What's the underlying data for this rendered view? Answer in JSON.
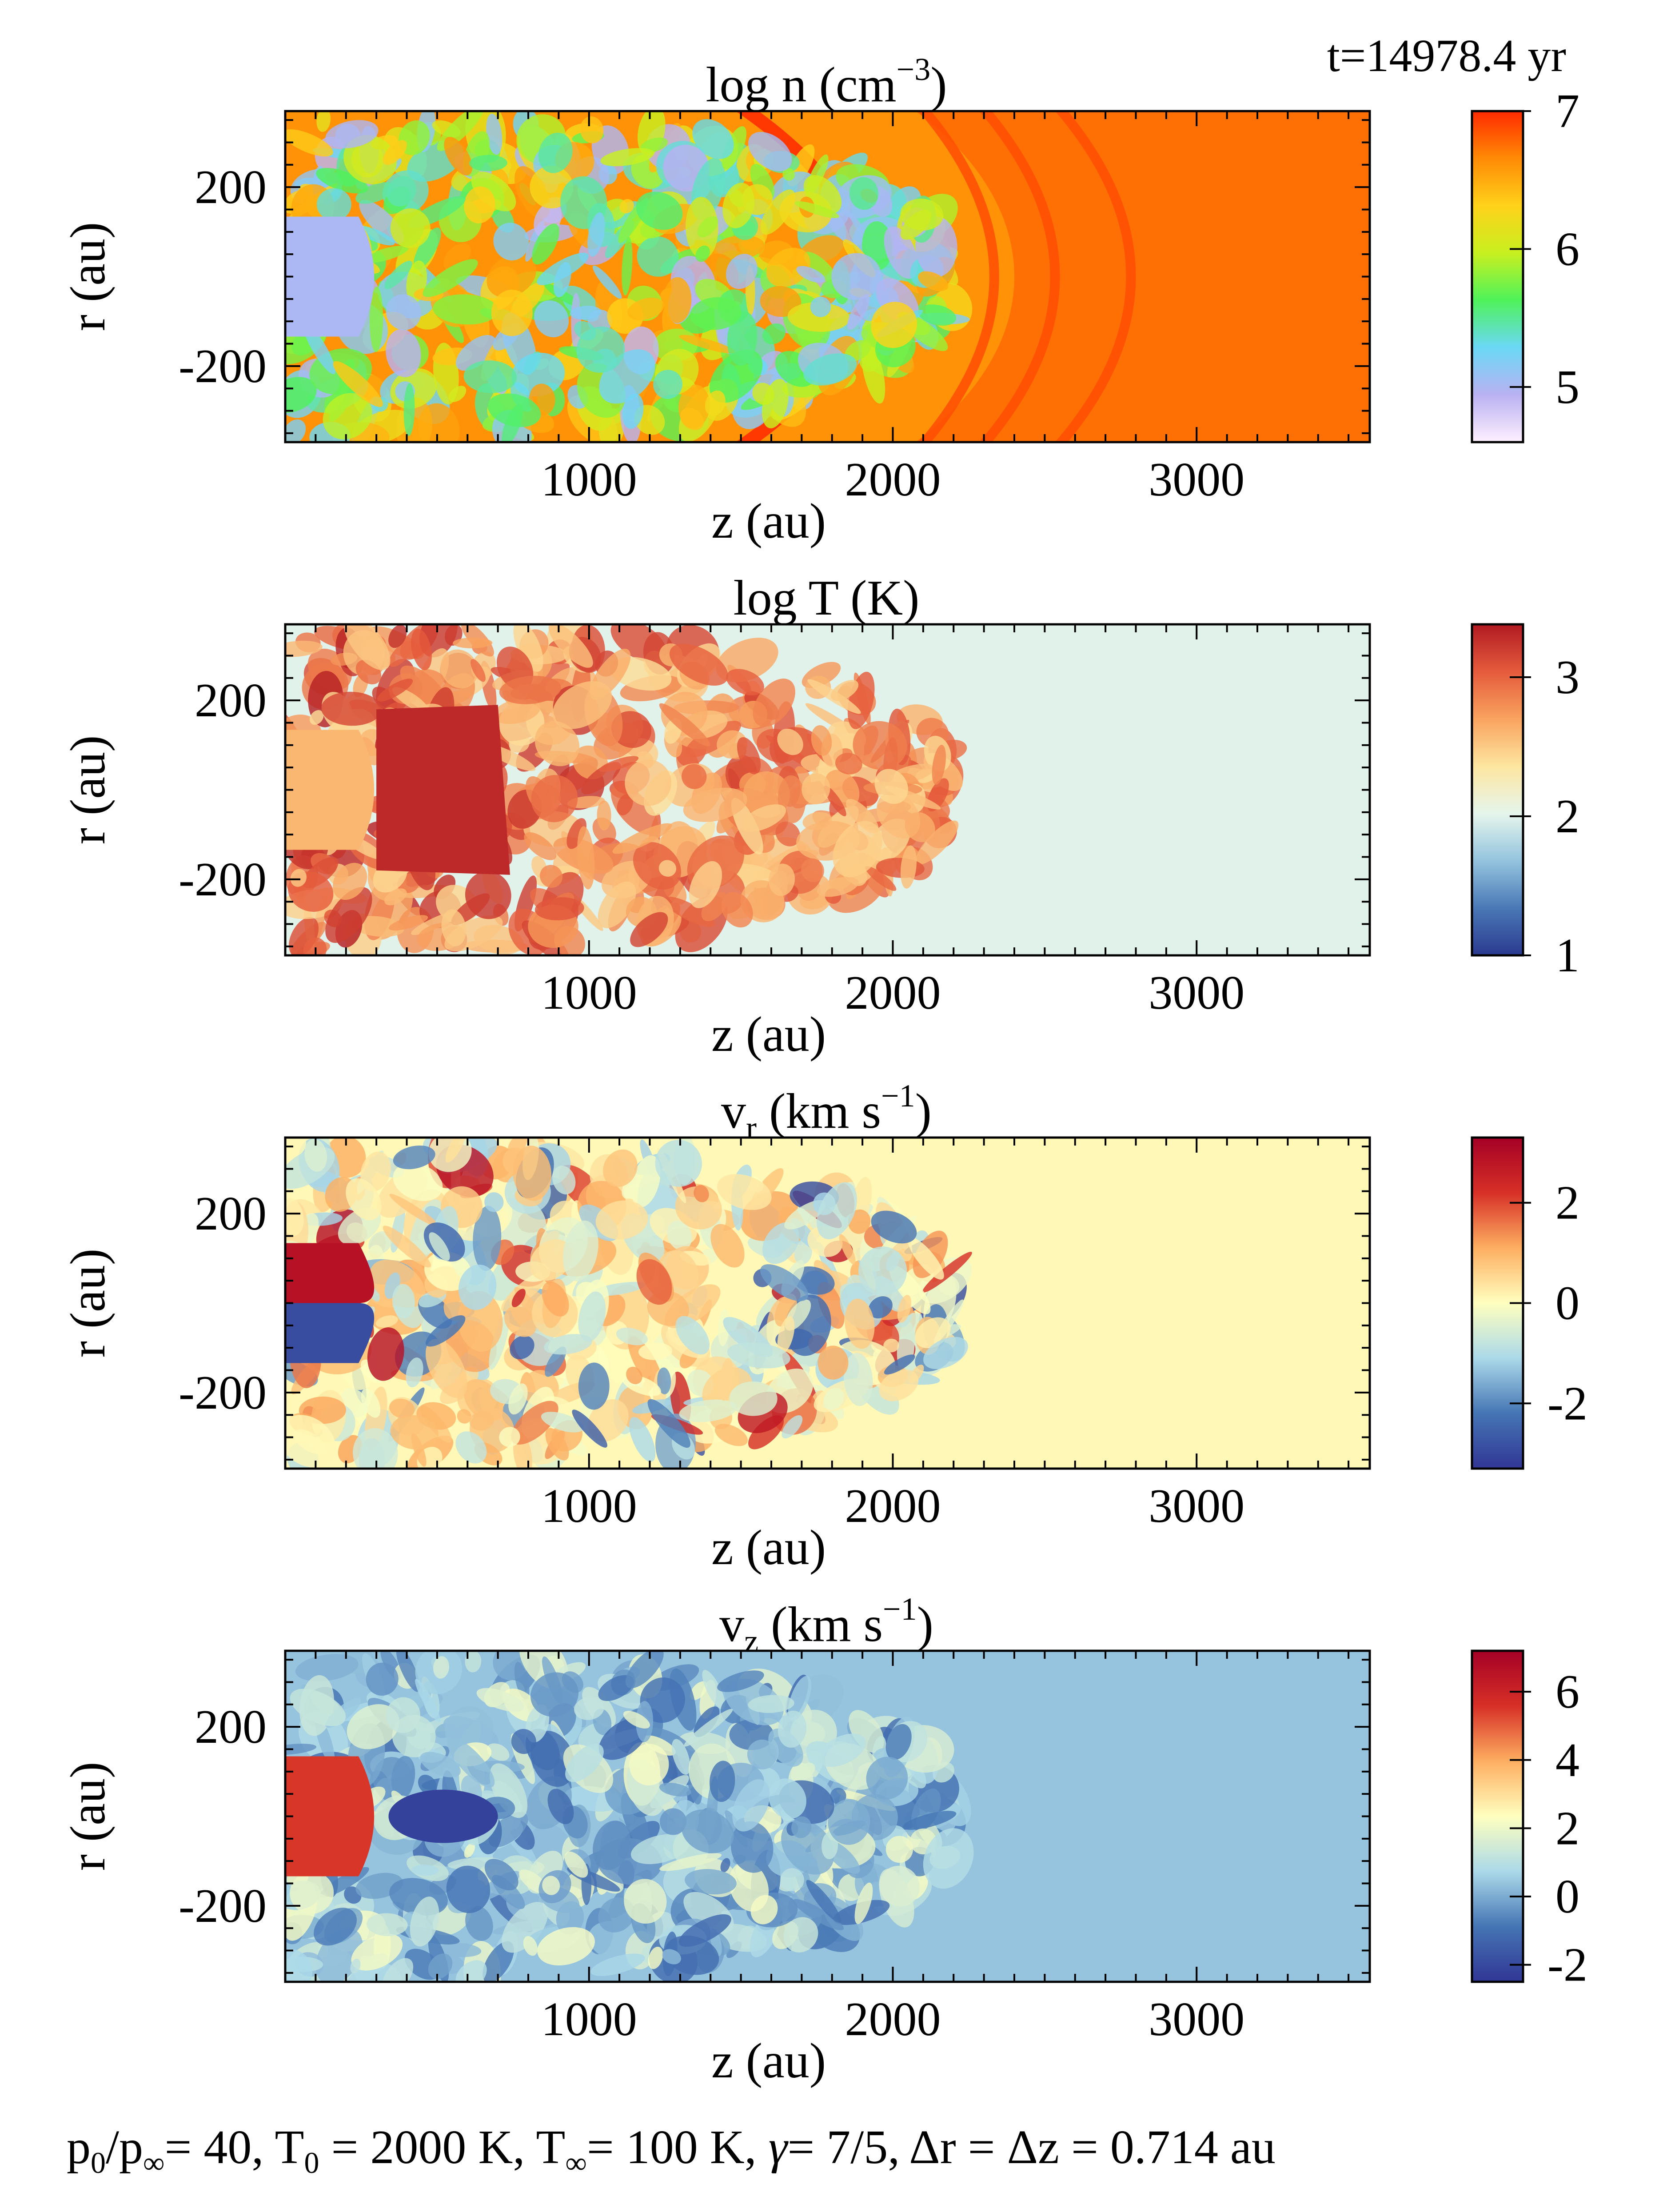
{
  "time_label": "t=14978.4 yr",
  "caption": {
    "prefix": "p",
    "sub0": "0",
    "slash_p": "/p",
    "sub_inf": "∞",
    "eq40": "= 40, T",
    "t0sub": "0",
    "eq2000": " = 2000 K, T",
    "tinfsub": "∞",
    "eq100": "= 100 K, ",
    "gamma": "γ",
    "rest": "= 7/5, Δr = Δz = 0.714 au"
  },
  "chart_data": [
    {
      "type": "heatmap",
      "title": "log n (cm",
      "title_sup": "−3",
      "title_end": ")",
      "xlabel": "z (au)",
      "ylabel": "r (au)",
      "xlim": [
        0,
        3570
      ],
      "ylim": [
        -370,
        370
      ],
      "xticks": [
        1000,
        2000,
        3000
      ],
      "yticks": [
        200,
        -200
      ],
      "xtick_labels": [
        "1000",
        "2000",
        "3000"
      ],
      "ytick_labels": [
        "200",
        "-200"
      ],
      "colormap": [
        "#fff0ff",
        "#b9b1f2",
        "#6ad8f5",
        "#4ff25a",
        "#c8f020",
        "#ffd21a",
        "#ff8a05",
        "#ff2a00"
      ],
      "clim": [
        4.6,
        7
      ],
      "cbar_ticks": [
        5,
        6,
        7
      ],
      "cbar_tick_labels": [
        "5",
        "6",
        "7"
      ],
      "features": {
        "background": 6.75,
        "shock_front_z": 2250,
        "outer_arcs_z": [
          2500,
          2700,
          2950
        ],
        "cavity_value": 5.0
      }
    },
    {
      "type": "heatmap",
      "title": "log T (K)",
      "xlabel": "z (au)",
      "ylabel": "r (au)",
      "xlim": [
        0,
        3570
      ],
      "ylim": [
        -370,
        370
      ],
      "xticks": [
        1000,
        2000,
        3000
      ],
      "yticks": [
        200,
        -200
      ],
      "xtick_labels": [
        "1000",
        "2000",
        "3000"
      ],
      "ytick_labels": [
        "200",
        "-200"
      ],
      "colormap": [
        "#2b3a90",
        "#4a78b6",
        "#94c4de",
        "#e6f5ec",
        "#fde6a0",
        "#f9a35f",
        "#e55b3c",
        "#b11a22"
      ],
      "clim": [
        1,
        3.38
      ],
      "cbar_ticks": [
        1,
        2,
        3
      ],
      "cbar_tick_labels": [
        "1",
        "2",
        "3"
      ],
      "features": {
        "background": 2.0,
        "hot_core": 3.3,
        "shock_front_z": 2250
      }
    },
    {
      "type": "heatmap",
      "title": "v",
      "title_sub": "r",
      "title_rest": " (km s",
      "title_sup": "−1",
      "title_end": ")",
      "xlabel": "z (au)",
      "ylabel": "r (au)",
      "xlim": [
        0,
        3570
      ],
      "ylim": [
        -370,
        370
      ],
      "xticks": [
        1000,
        2000,
        3000
      ],
      "yticks": [
        200,
        -200
      ],
      "xtick_labels": [
        "1000",
        "2000",
        "3000"
      ],
      "ytick_labels": [
        "200",
        "-200"
      ],
      "colormap": [
        "#313695",
        "#4575b4",
        "#abd9e9",
        "#ffffbf",
        "#fdae61",
        "#d73027",
        "#a50026"
      ],
      "clim": [
        -3.3,
        3.3
      ],
      "cbar_ticks": [
        2,
        0,
        -2
      ],
      "cbar_tick_labels": [
        "2",
        "0",
        "-2"
      ],
      "features": {
        "background": 0.1
      }
    },
    {
      "type": "heatmap",
      "title": "v",
      "title_sub": "z",
      "title_rest": " (km s",
      "title_sup": "−1",
      "title_end": ")",
      "xlabel": "z (au)",
      "ylabel": "r (au)",
      "xlim": [
        0,
        3570
      ],
      "ylim": [
        -370,
        370
      ],
      "xticks": [
        1000,
        2000,
        3000
      ],
      "yticks": [
        200,
        -200
      ],
      "xtick_labels": [
        "1000",
        "2000",
        "3000"
      ],
      "ytick_labels": [
        "200",
        "-200"
      ],
      "colormap": [
        "#313695",
        "#4575b4",
        "#abd9e9",
        "#ffffbf",
        "#fdae61",
        "#d73027",
        "#a50026"
      ],
      "clim": [
        -2.5,
        7.2
      ],
      "cbar_ticks": [
        6,
        4,
        2,
        0,
        -2
      ],
      "cbar_tick_labels": [
        "6",
        "4",
        "2",
        "0",
        "-2"
      ],
      "features": {
        "background": 0.4,
        "jet_head": 5.5
      }
    }
  ]
}
